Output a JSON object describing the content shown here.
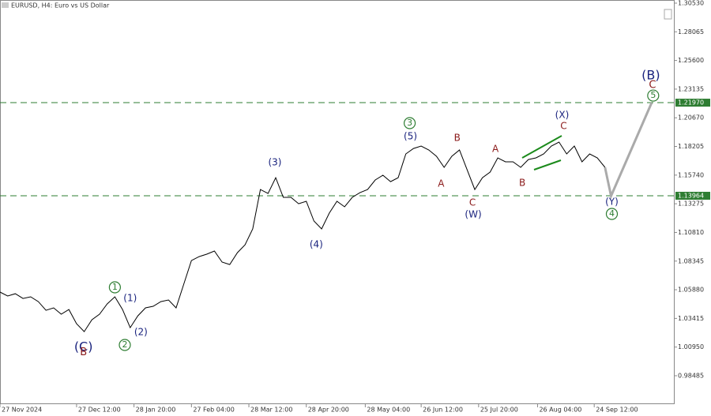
{
  "chart_data": {
    "type": "line",
    "title": "EURUSD, H4: Euro vs US Dollar",
    "xlim": [
      0,
      88
    ],
    "ylim": [
      0.9604,
      1.308
    ],
    "yticks": [
      {
        "value": 1.3053,
        "label": "1.30530"
      },
      1.28065,
      {
        "value": 1.256,
        "label": "1.25600"
      },
      1.23135,
      {
        "value": 1.2067,
        "label": "1.20670"
      },
      1.18205,
      {
        "value": 1.1574,
        "label": "1.15740"
      },
      1.13275,
      {
        "value": 1.1081,
        "label": "1.10810"
      },
      1.08345,
      {
        "value": 1.0588,
        "label": "1.05880"
      },
      1.03415,
      {
        "value": 1.0095,
        "label": "1.00950"
      },
      0.98485
    ],
    "xticks": [
      {
        "value": 0,
        "label": "27 Nov 2024"
      },
      {
        "value": 10,
        "label": "27 Dec 12:00"
      },
      {
        "value": 17.5,
        "label": "28 Jan 20:00"
      },
      {
        "value": 25,
        "label": "27 Feb 04:00"
      },
      {
        "value": 32.5,
        "label": "28 Mar 12:00"
      },
      {
        "value": 40,
        "label": "28 Apr 20:00"
      },
      {
        "value": 47.7,
        "label": "28 May 04:00"
      },
      {
        "value": 55,
        "label": "26 Jun 12:00"
      },
      {
        "value": 62.5,
        "label": "25 Jul 20:00"
      },
      {
        "value": 70.2,
        "label": "26 Aug 04:00"
      },
      {
        "value": 77.6,
        "label": "24 Sep 12:00"
      }
    ],
    "series": [
      {
        "color": "#000000",
        "values": [
          1.0568,
          1.0534,
          1.0554,
          1.0513,
          1.0527,
          1.0486,
          1.0411,
          1.0432,
          1.0378,
          1.0418,
          1.0296,
          1.0228,
          1.033,
          1.0378,
          1.0466,
          1.0527,
          1.0418,
          1.0262,
          1.0364,
          1.0432,
          1.0446,
          1.0486,
          1.05,
          1.0432,
          1.0636,
          1.0839,
          1.0873,
          1.0894,
          1.0921,
          1.0826,
          1.0805,
          1.0907,
          1.0975,
          1.1111,
          1.145,
          1.1416,
          1.1552,
          1.1383,
          1.1383,
          1.1328,
          1.1349,
          1.1179,
          1.1111,
          1.1247,
          1.1349,
          1.1301,
          1.1383,
          1.1423,
          1.145,
          1.1532,
          1.1573,
          1.1518,
          1.1552,
          1.1756,
          1.1803,
          1.1824,
          1.179,
          1.1736,
          1.1641,
          1.1736,
          1.179,
          1.162,
          1.145,
          1.1552,
          1.16,
          1.1722,
          1.1688,
          1.1688,
          1.1641,
          1.1708,
          1.1722,
          1.1756,
          1.1824,
          1.1858,
          1.1756,
          1.1824,
          1.1688,
          1.1756,
          1.1722,
          1.1641
        ]
      },
      {
        "color": "#aaaaaa",
        "x": [
          79,
          79.8,
          85.1
        ],
        "values": [
          1.1641,
          1.1395,
          1.2197
        ]
      }
    ],
    "levels": [
      {
        "value": 1.2197,
        "label": "1.21970"
      },
      {
        "value": 1.13964,
        "label": "1.13964"
      }
    ],
    "level_color": "#2e7d32",
    "annotations": [
      {
        "text": "(C)",
        "x": 10.9,
        "y": 1.0092,
        "color": "#1a237e",
        "size": 16
      },
      {
        "text": "B",
        "x": 10.9,
        "y": 1.005,
        "color": "#8b1a1a",
        "size": 13
      },
      {
        "text": "1",
        "x": 15,
        "y": 1.0609,
        "color": "#2e7d32",
        "size": 11,
        "circled": true
      },
      {
        "text": "(1)",
        "x": 17,
        "y": 1.0513,
        "color": "#1a237e",
        "size": 12
      },
      {
        "text": "2",
        "x": 16.3,
        "y": 1.0113,
        "color": "#2e7d32",
        "size": 11,
        "circled": true
      },
      {
        "text": "(2)",
        "x": 18.4,
        "y": 1.0221,
        "color": "#1a237e",
        "size": 12
      },
      {
        "text": "(3)",
        "x": 35.9,
        "y": 1.1681,
        "color": "#1a237e",
        "size": 12
      },
      {
        "text": "(4)",
        "x": 41.3,
        "y": 1.0975,
        "color": "#1a237e",
        "size": 12
      },
      {
        "text": "3",
        "x": 53.5,
        "y": 1.2021,
        "color": "#2e7d32",
        "size": 11,
        "circled": true
      },
      {
        "text": "(5)",
        "x": 53.6,
        "y": 1.1905,
        "color": "#1a237e",
        "size": 12
      },
      {
        "text": "B",
        "x": 59.7,
        "y": 1.1892,
        "color": "#8b1a1a",
        "size": 12
      },
      {
        "text": "A",
        "x": 57.6,
        "y": 1.1498,
        "color": "#8b1a1a",
        "size": 12
      },
      {
        "text": "C",
        "x": 61.7,
        "y": 1.1335,
        "color": "#8b1a1a",
        "size": 12
      },
      {
        "text": "(W)",
        "x": 61.8,
        "y": 1.1233,
        "color": "#1a237e",
        "size": 12
      },
      {
        "text": "A",
        "x": 64.7,
        "y": 1.1797,
        "color": "#8b1a1a",
        "size": 12
      },
      {
        "text": "B",
        "x": 68.2,
        "y": 1.1505,
        "color": "#8b1a1a",
        "size": 12
      },
      {
        "text": "(X)",
        "x": 73.4,
        "y": 1.2089,
        "color": "#1a237e",
        "size": 12
      },
      {
        "text": "C",
        "x": 73.6,
        "y": 1.1994,
        "color": "#8b1a1a",
        "size": 12
      },
      {
        "text": "(Y)",
        "x": 79.9,
        "y": 1.1342,
        "color": "#1a237e",
        "size": 12
      },
      {
        "text": "4",
        "x": 79.9,
        "y": 1.124,
        "color": "#2e7d32",
        "size": 11,
        "circled": true
      },
      {
        "text": "(B)",
        "x": 85,
        "y": 1.2428,
        "color": "#1a237e",
        "size": 16
      },
      {
        "text": "C",
        "x": 85.2,
        "y": 1.2347,
        "color": "#8b1a1a",
        "size": 13
      },
      {
        "text": "5",
        "x": 85.3,
        "y": 1.2258,
        "color": "#2e7d32",
        "size": 11,
        "circled": true
      }
    ]
  }
}
